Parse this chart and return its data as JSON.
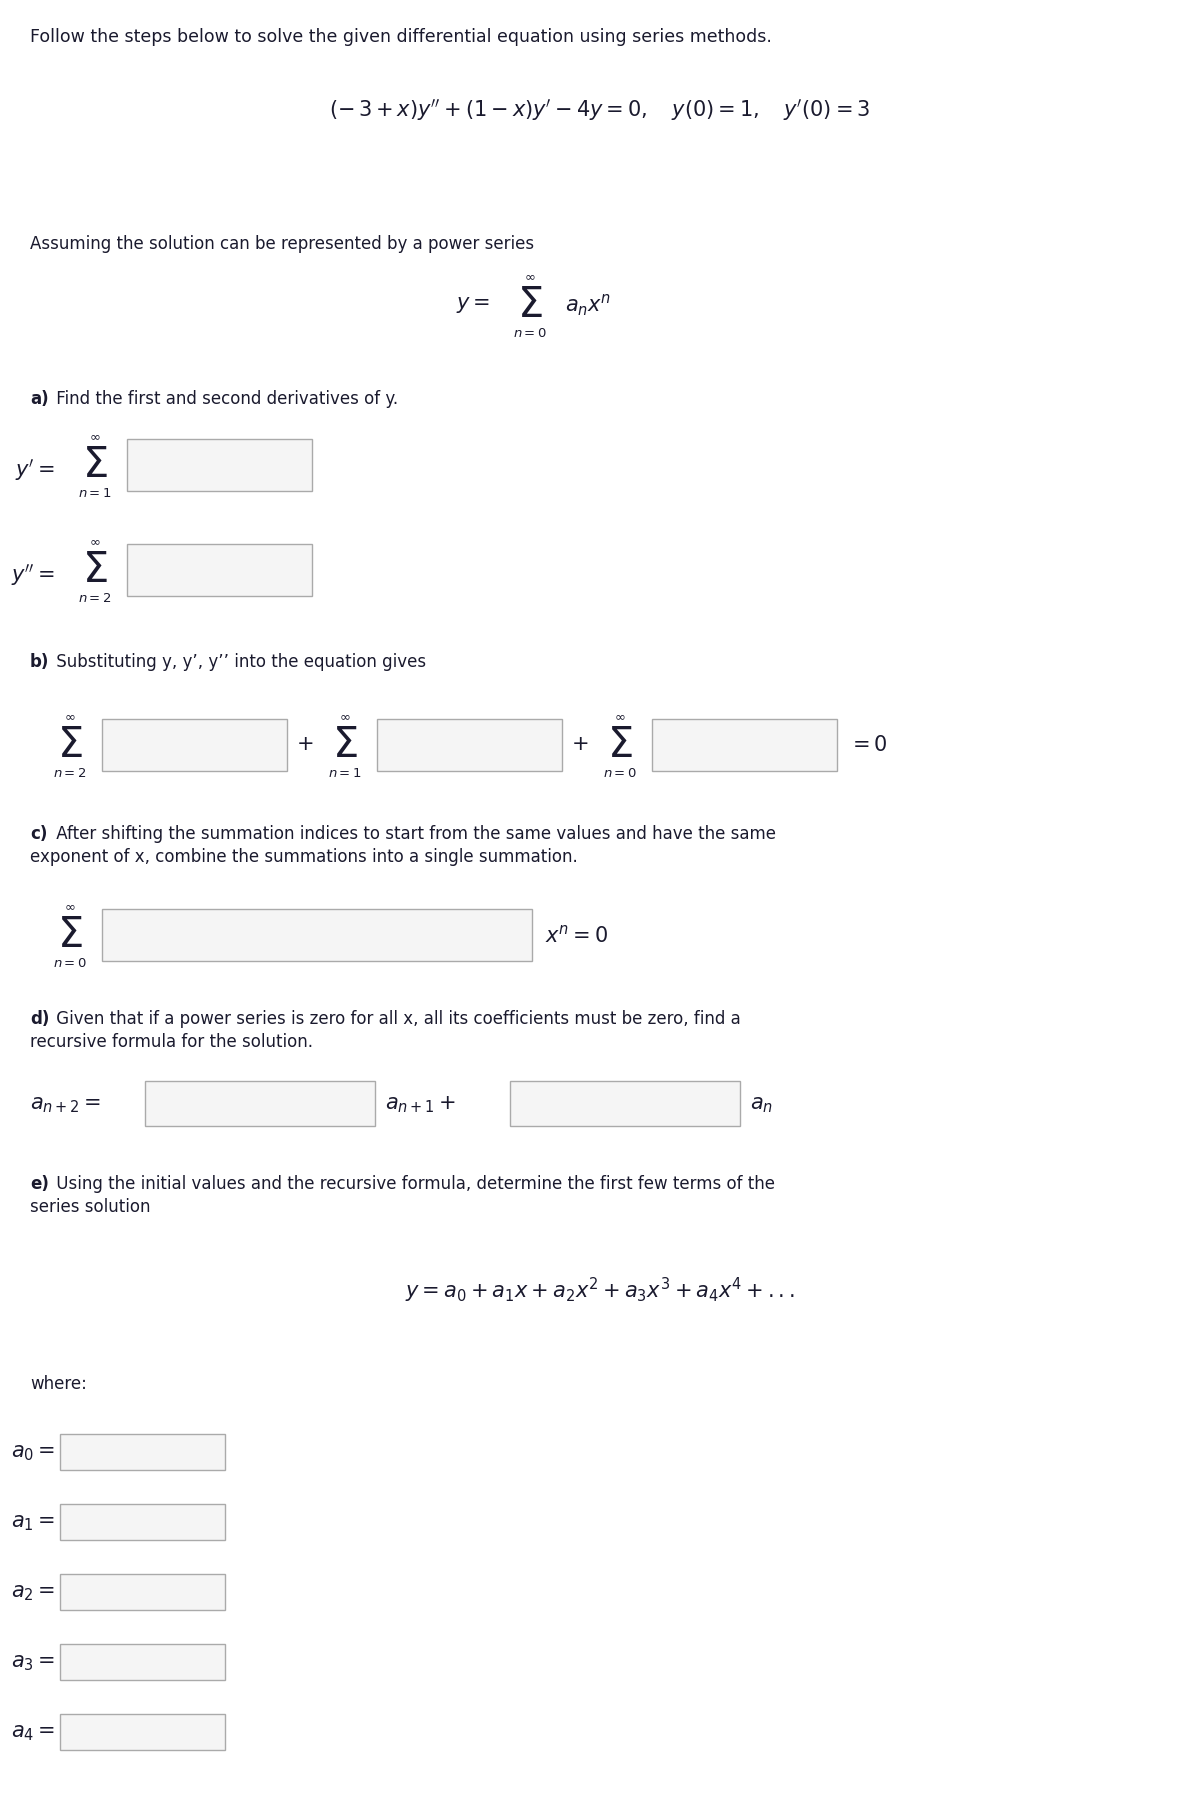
{
  "bg_color": "#ffffff",
  "dark": "#1a1a2e",
  "box_face": "#f5f5f5",
  "box_edge": "#aaaaaa",
  "title_text": "Follow the steps below to solve the given differential equation using series methods.",
  "power_series_intro": "Assuming the solution can be represented by a power series",
  "section_a_bold": "a)",
  "section_a_rest": " Find the first and second derivatives of y.",
  "section_b_bold": "b)",
  "section_b_rest": " Substituting y, y’, y’’ into the equation gives",
  "section_c_bold": "c)",
  "section_c_line1": " After shifting the summation indices to start from the same values and have the same",
  "section_c_line2": "exponent of x, combine the summations into a single summation.",
  "section_d_bold": "d)",
  "section_d_line1": " Given that if a power series is zero for all x, all its coefficients must be zero, find a",
  "section_d_line2": "recursive formula for the solution.",
  "section_e_bold": "e)",
  "section_e_line1": " Using the initial values and the recursive formula, determine the first few terms of the",
  "section_e_line2": "series solution",
  "where_text": "where:",
  "fs_title": 12.5,
  "fs_body": 12,
  "fs_math_main": 15,
  "fs_sigma": 30,
  "fs_sub": 9.5,
  "fs_inf": 9.5
}
